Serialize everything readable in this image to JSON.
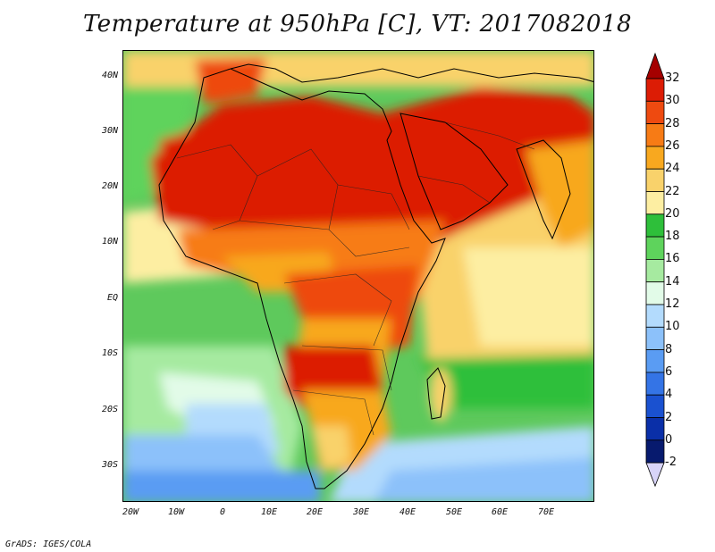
{
  "title": "Temperature at 950hPa [C], VT: 2017082018",
  "footer": "GrADS: IGES/COLA",
  "map": {
    "region": "Africa, Middle East and Arabian Sea",
    "lat_labels": [
      "40N",
      "30N",
      "20N",
      "10N",
      "EQ",
      "10S",
      "20S",
      "30S"
    ],
    "lon_labels": [
      "20W",
      "10W",
      "0",
      "10E",
      "20E",
      "30E",
      "40E",
      "50E",
      "60E",
      "70E"
    ]
  },
  "colorbar": {
    "labels": [
      "32",
      "30",
      "28",
      "26",
      "24",
      "22",
      "20",
      "18",
      "16",
      "14",
      "12",
      "10",
      "8",
      "6",
      "4",
      "2",
      "0",
      "-2"
    ],
    "colors": [
      "#a50000",
      "#dc1c05",
      "#ee4a10",
      "#f77b15",
      "#f8a81f",
      "#f9d26b",
      "#fdeea2",
      "#2ebf3a",
      "#5ed35c",
      "#a6eaa0",
      "#e2fbe8",
      "#b3dbfd",
      "#8cc1fa",
      "#5a9cf3",
      "#3474e6",
      "#1a51d0",
      "#0a2fa8",
      "#071a6e",
      "#d8d4f8"
    ]
  }
}
